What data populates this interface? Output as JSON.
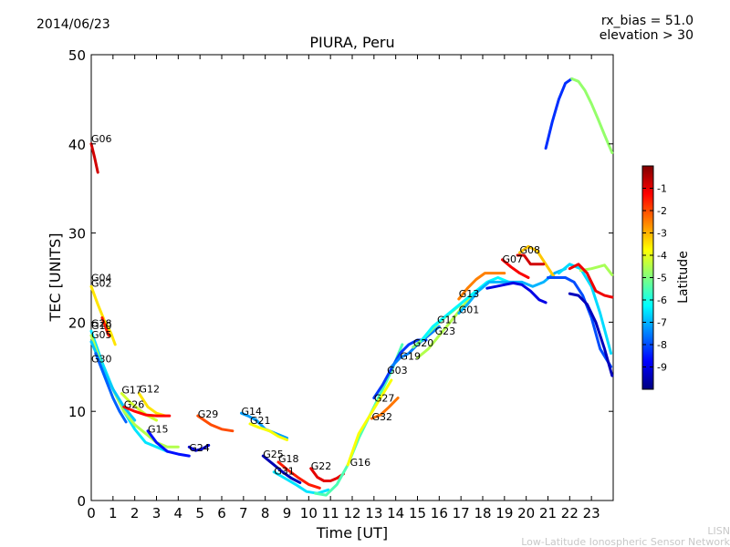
{
  "header": {
    "date": "2014/06/23",
    "rx_bias": "rx_bias = 51.0",
    "elevation": "elevation > 30"
  },
  "footer": {
    "line1": "LISN",
    "line2": "Low-Latitude Ionospheric Sensor Network"
  },
  "chart_data": {
    "type": "scatter",
    "title": "PIURA, Peru",
    "xlabel": "Time [UT]",
    "ylabel": "TEC [UNITS]",
    "xlim": [
      0,
      24
    ],
    "ylim": [
      0,
      50
    ],
    "xticks": [
      "0",
      "1",
      "2",
      "3",
      "4",
      "5",
      "6",
      "7",
      "8",
      "9",
      "10",
      "11",
      "12",
      "13",
      "14",
      "15",
      "16",
      "17",
      "18",
      "19",
      "20",
      "21",
      "22",
      "23"
    ],
    "yticks": [
      "0",
      "10",
      "20",
      "30",
      "40",
      "50"
    ],
    "grid": false,
    "colorbar": {
      "label": "Latitude",
      "ticks": [
        "-1",
        "-2",
        "-3",
        "-4",
        "-5",
        "-6",
        "-7",
        "-8",
        "-9"
      ],
      "range": [
        -10,
        0
      ],
      "colors": [
        "#00007f",
        "#0000ff",
        "#007fff",
        "#00ffff",
        "#7fff7f",
        "#ffff00",
        "#ff7f00",
        "#ff0000",
        "#7f0000"
      ]
    },
    "series": [
      {
        "name": "G06",
        "label_at": [
          0.0,
          40.2
        ],
        "lat": -0.8,
        "x": [
          0.0,
          0.15,
          0.3
        ],
        "y": [
          40.0,
          38.5,
          36.8
        ]
      },
      {
        "name": "G04",
        "label_at": [
          0.0,
          24.6
        ],
        "lat": -3.5,
        "x": [
          0.0,
          0.3,
          0.6,
          0.9,
          1.1
        ],
        "y": [
          24.0,
          22.0,
          20.2,
          18.8,
          17.5
        ]
      },
      {
        "name": "G02",
        "label_at": [
          0.0,
          24.0
        ],
        "lat": -1.5,
        "x": [
          0.5,
          0.8
        ],
        "y": [
          20.5,
          18.5
        ]
      },
      {
        "name": "G28",
        "label_at": [
          0.0,
          19.5
        ],
        "lat": -6.5,
        "x": [
          0.0,
          0.5,
          1.0,
          1.5,
          2.0,
          2.5,
          3.0,
          3.5
        ],
        "y": [
          19.0,
          15.5,
          12.5,
          10.0,
          8.0,
          6.5,
          6.0,
          5.5
        ]
      },
      {
        "name": "G10",
        "label_at": [
          0.0,
          19.2
        ],
        "lat": -4.5,
        "x": [
          0.0,
          0.5,
          1.0,
          1.5,
          2.0,
          2.5,
          3.0,
          3.5,
          4.0
        ],
        "y": [
          18.5,
          15.0,
          12.5,
          10.0,
          8.5,
          7.5,
          6.5,
          6.0,
          6.0
        ]
      },
      {
        "name": "G05",
        "label_at": [
          0.0,
          18.2
        ],
        "lat": -6.8,
        "x": [
          0.0,
          0.5,
          1.0,
          1.5,
          2.0
        ],
        "y": [
          17.8,
          15.0,
          12.5,
          10.5,
          9.0
        ]
      },
      {
        "name": "G30",
        "label_at": [
          0.0,
          15.5
        ],
        "lat": -7.8,
        "x": [
          0.2,
          0.6,
          1.0,
          1.3,
          1.6
        ],
        "y": [
          16.5,
          14.0,
          11.5,
          10.0,
          8.8
        ]
      },
      {
        "name": "G17",
        "label_at": [
          1.4,
          12.0
        ],
        "lat": -4.2,
        "x": [
          1.4,
          1.8,
          2.2,
          2.6,
          3.0
        ],
        "y": [
          12.0,
          11.0,
          10.2,
          9.5,
          9.0
        ]
      },
      {
        "name": "G12",
        "label_at": [
          2.2,
          12.1
        ],
        "lat": -3.5,
        "x": [
          2.2,
          2.6,
          3.0,
          3.4
        ],
        "y": [
          12.0,
          10.5,
          9.8,
          9.5
        ]
      },
      {
        "name": "G26",
        "label_at": [
          1.5,
          10.4
        ],
        "lat": -1.3,
        "x": [
          1.5,
          2.0,
          2.5,
          3.0,
          3.6
        ],
        "y": [
          10.5,
          10.0,
          9.6,
          9.5,
          9.5
        ]
      },
      {
        "name": "G15",
        "label_at": [
          2.6,
          7.6
        ],
        "lat": -8.6,
        "x": [
          2.6,
          3.0,
          3.5,
          4.0,
          4.5
        ],
        "y": [
          7.8,
          6.5,
          5.5,
          5.2,
          5.0
        ]
      },
      {
        "name": "G24",
        "label_at": [
          4.5,
          5.5
        ],
        "lat": -9.2,
        "x": [
          4.5,
          4.8,
          5.1,
          5.4
        ],
        "y": [
          6.0,
          5.6,
          5.8,
          6.2
        ]
      },
      {
        "name": "G29",
        "label_at": [
          4.9,
          9.3
        ],
        "lat": -2.0,
        "x": [
          4.9,
          5.2,
          5.5,
          6.0,
          6.5
        ],
        "y": [
          9.5,
          9.0,
          8.5,
          8.0,
          7.8
        ]
      },
      {
        "name": "G14",
        "label_at": [
          6.9,
          9.6
        ],
        "lat": -7.2,
        "x": [
          6.9,
          7.2,
          7.6,
          8.0,
          8.5,
          9.0
        ],
        "y": [
          9.8,
          9.5,
          9.0,
          8.0,
          7.5,
          7.0
        ]
      },
      {
        "name": "G21",
        "label_at": [
          7.3,
          8.6
        ],
        "lat": -3.8,
        "x": [
          7.3,
          7.7,
          8.2,
          8.6,
          9.0
        ],
        "y": [
          8.6,
          8.2,
          7.8,
          7.2,
          6.8
        ]
      },
      {
        "name": "G25",
        "label_at": [
          7.9,
          4.8
        ],
        "lat": -9.5,
        "x": [
          7.9,
          8.3,
          8.8,
          9.2,
          9.6
        ],
        "y": [
          5.0,
          4.2,
          3.2,
          2.5,
          2.0
        ]
      },
      {
        "name": "G18",
        "label_at": [
          8.6,
          4.3
        ],
        "lat": -1.5,
        "x": [
          8.6,
          9.0,
          9.5,
          10.0,
          10.5
        ],
        "y": [
          4.3,
          3.5,
          2.6,
          1.8,
          1.4
        ]
      },
      {
        "name": "G31",
        "label_at": [
          8.4,
          2.9
        ],
        "lat": -6.5,
        "x": [
          8.4,
          8.9,
          9.4,
          9.9,
          10.4,
          10.9
        ],
        "y": [
          3.2,
          2.5,
          1.8,
          1.0,
          0.8,
          1.2
        ]
      },
      {
        "name": "G22",
        "label_at": [
          10.1,
          3.5
        ],
        "lat": -1.0,
        "x": [
          10.1,
          10.4,
          10.7,
          11.0,
          11.3,
          11.6
        ],
        "y": [
          3.6,
          2.6,
          2.2,
          2.2,
          2.5,
          3.0
        ]
      },
      {
        "name": "G16",
        "label_at": [
          11.9,
          3.9
        ],
        "lat": -5.5,
        "x": [
          10.3,
          10.8,
          11.3,
          11.8,
          12.3,
          12.8,
          13.3,
          13.8,
          14.3
        ],
        "y": [
          0.8,
          0.6,
          1.8,
          4.0,
          7.0,
          9.5,
          12.0,
          14.5,
          17.5
        ]
      },
      {
        "name": "G27",
        "label_at": [
          13.0,
          11.1
        ],
        "lat": -3.8,
        "x": [
          11.8,
          12.3,
          12.8,
          13.3,
          13.8
        ],
        "y": [
          4.0,
          7.5,
          9.5,
          11.5,
          13.5
        ]
      },
      {
        "name": "G32",
        "label_at": [
          12.9,
          9.0
        ],
        "lat": -2.4,
        "x": [
          12.9,
          13.3,
          13.7,
          14.1
        ],
        "y": [
          9.2,
          9.6,
          10.5,
          11.5
        ]
      },
      {
        "name": "G03",
        "label_at": [
          13.6,
          14.2
        ],
        "lat": -8.2,
        "x": [
          13.0,
          13.4,
          13.8,
          14.2,
          14.6,
          15.0,
          15.4
        ],
        "y": [
          11.5,
          13.0,
          14.8,
          16.5,
          17.5,
          18.0,
          18.0
        ]
      },
      {
        "name": "G19",
        "label_at": [
          14.2,
          15.8
        ],
        "lat": -7.5,
        "x": [
          13.8,
          14.2,
          14.6,
          15.0,
          15.5,
          16.0
        ],
        "y": [
          15.0,
          16.0,
          16.5,
          17.5,
          18.5,
          19.5
        ]
      },
      {
        "name": "G20",
        "label_at": [
          14.8,
          17.3
        ],
        "lat": -5.0,
        "x": [
          14.8,
          15.2,
          15.6,
          16.0,
          16.5,
          17.0
        ],
        "y": [
          17.2,
          18.0,
          19.0,
          20.0,
          21.0,
          22.0
        ]
      },
      {
        "name": "G11",
        "label_at": [
          15.9,
          19.9
        ],
        "lat": -4.5,
        "x": [
          15.0,
          15.5,
          16.0,
          16.5,
          17.0,
          17.5
        ],
        "y": [
          16.0,
          17.0,
          18.5,
          20.0,
          21.5,
          23.0
        ]
      },
      {
        "name": "G23",
        "label_at": [
          15.8,
          18.6
        ],
        "lat": -6.3,
        "x": [
          15.2,
          15.7,
          16.2,
          16.7,
          17.2,
          17.7,
          18.2,
          18.7,
          19.2
        ],
        "y": [
          18.0,
          19.5,
          20.5,
          21.5,
          22.5,
          23.5,
          24.5,
          25.0,
          24.5
        ]
      },
      {
        "name": "G01",
        "label_at": [
          16.9,
          21.0
        ],
        "lat": -7.0,
        "x": [
          16.9,
          17.3,
          17.8,
          18.3,
          18.8,
          19.3,
          19.8,
          20.3,
          20.8,
          21.3,
          21.8
        ],
        "y": [
          21.0,
          22.0,
          23.5,
          24.5,
          24.5,
          24.5,
          24.5,
          24.0,
          24.5,
          25.5,
          26.0
        ]
      },
      {
        "name": "G13",
        "label_at": [
          16.9,
          22.8
        ],
        "lat": -2.5,
        "x": [
          16.9,
          17.3,
          17.7,
          18.1,
          18.5,
          19.0
        ],
        "y": [
          22.6,
          23.8,
          24.8,
          25.5,
          25.5,
          25.5
        ]
      },
      {
        "name": "G07",
        "label_at": [
          18.9,
          26.7
        ],
        "lat": -1.2,
        "x": [
          18.9,
          19.3,
          19.7,
          20.1
        ],
        "y": [
          27.0,
          26.2,
          25.5,
          25.0
        ]
      },
      {
        "name": "G08",
        "label_at": [
          19.7,
          27.7
        ],
        "lat": -3.2,
        "x": [
          19.7,
          20.1,
          20.5,
          20.9,
          21.3
        ],
        "y": [
          27.8,
          28.5,
          28.0,
          26.5,
          25.0
        ]
      },
      {
        "name": "",
        "lat": -0.8,
        "x": [
          19.6,
          19.9,
          20.2,
          20.5,
          20.8
        ],
        "y": [
          27.5,
          27.5,
          26.5,
          26.5,
          26.5
        ]
      },
      {
        "name": "",
        "lat": -9.0,
        "x": [
          18.2,
          18.6,
          19.0,
          19.4,
          19.8,
          20.2,
          20.6,
          20.9
        ],
        "y": [
          23.8,
          24.0,
          24.2,
          24.4,
          24.2,
          23.5,
          22.5,
          22.2
        ]
      },
      {
        "name": "",
        "lat": -8.0,
        "x": [
          21.0,
          21.4,
          21.8,
          22.2,
          22.6,
          23.0,
          23.4,
          23.9
        ],
        "y": [
          25.0,
          25.0,
          25.0,
          24.5,
          23.0,
          20.5,
          17.0,
          15.0
        ]
      },
      {
        "name": "",
        "lat": -9.4,
        "x": [
          22.0,
          22.4,
          22.8,
          23.2,
          23.6,
          23.95
        ],
        "y": [
          23.2,
          23.0,
          22.0,
          20.0,
          17.0,
          14.0
        ]
      },
      {
        "name": "",
        "lat": -6.6,
        "x": [
          21.5,
          22.0,
          22.5,
          23.0,
          23.4,
          23.9
        ],
        "y": [
          25.5,
          26.5,
          26.0,
          24.0,
          21.0,
          16.5
        ]
      },
      {
        "name": "",
        "lat": -4.6,
        "x": [
          22.5,
          23.0,
          23.3,
          23.6,
          23.95
        ],
        "y": [
          25.8,
          26.0,
          26.2,
          26.4,
          25.3
        ]
      },
      {
        "name": "",
        "lat": -1.1,
        "x": [
          22.0,
          22.4,
          22.8,
          23.2,
          23.6,
          23.95
        ],
        "y": [
          26.0,
          26.5,
          25.5,
          23.5,
          23.0,
          22.8
        ]
      },
      {
        "name": "",
        "lat": -8.3,
        "x": [
          20.9,
          21.2,
          21.5,
          21.8,
          22.1
        ],
        "y": [
          39.5,
          42.5,
          45.0,
          46.8,
          47.3
        ]
      },
      {
        "name": "",
        "lat": -4.8,
        "x": [
          22.1,
          22.4,
          22.7,
          23.0,
          23.3,
          23.6,
          23.95
        ],
        "y": [
          47.3,
          47.0,
          46.0,
          44.5,
          42.8,
          41.0,
          39.0
        ]
      }
    ]
  }
}
